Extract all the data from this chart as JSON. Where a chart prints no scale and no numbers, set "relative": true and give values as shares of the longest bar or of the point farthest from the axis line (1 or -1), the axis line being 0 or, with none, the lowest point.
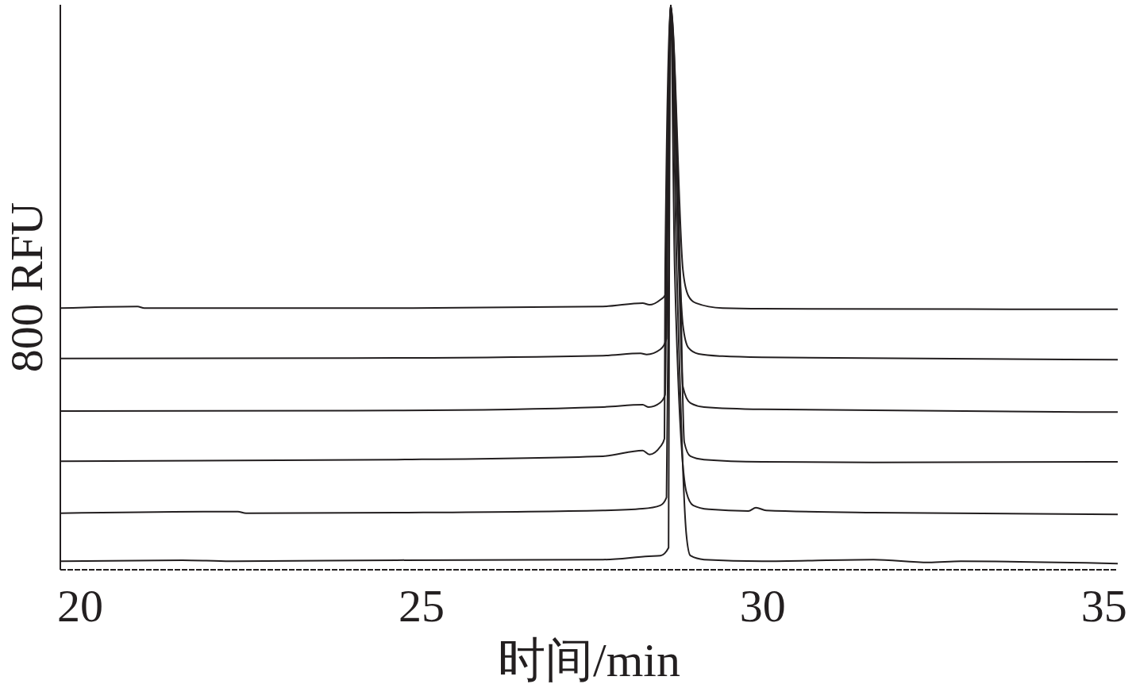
{
  "chart_data": {
    "type": "line",
    "xlabel": "时间/min",
    "ylabel": "800 RFU",
    "relative": true,
    "xlim": [
      19.71,
      35.2
    ],
    "xticks": [
      20,
      25,
      30,
      35
    ],
    "marker": "none",
    "line_style": "solid",
    "series": [
      {
        "color": "#231f20",
        "x": [
          19.71,
          21.5,
          22.2,
          24.64,
          27.66,
          28.33,
          28.5,
          28.62,
          28.63,
          28.65,
          28.74,
          28.88,
          28.94,
          29.14,
          29.99,
          31.62,
          32.43,
          32.9,
          35.2
        ],
        "values": [
          0.015,
          0.017,
          0.015,
          0.017,
          0.018,
          0.024,
          0.025,
          0.039,
          0.531,
          1.0,
          0.531,
          0.063,
          0.025,
          0.018,
          0.015,
          0.018,
          0.013,
          0.015,
          0.011
        ]
      },
      {
        "color": "#231f20",
        "x": [
          19.71,
          22.31,
          22.43,
          24.64,
          27.66,
          28.24,
          28.5,
          28.59,
          28.62,
          28.65,
          28.71,
          28.88,
          28.98,
          29.21,
          29.79,
          29.9,
          30.05,
          31.62,
          35.2
        ],
        "values": [
          0.1,
          0.103,
          0.1,
          0.101,
          0.105,
          0.108,
          0.114,
          0.128,
          0.531,
          1.0,
          0.531,
          0.138,
          0.114,
          0.107,
          0.104,
          0.11,
          0.105,
          0.101,
          0.098
        ]
      },
      {
        "color": "#231f20",
        "x": [
          19.71,
          24.64,
          27.66,
          28.24,
          28.34,
          28.5,
          28.56,
          28.57,
          28.65,
          28.79,
          28.85,
          28.94,
          29.14,
          29.99,
          31.62,
          35.2
        ],
        "values": [
          0.192,
          0.195,
          0.201,
          0.211,
          0.204,
          0.218,
          0.232,
          0.531,
          1.0,
          0.531,
          0.226,
          0.201,
          0.195,
          0.191,
          0.19,
          0.191
        ]
      },
      {
        "color": "#231f20",
        "x": [
          19.71,
          24.64,
          27.66,
          28.24,
          28.33,
          28.5,
          28.57,
          28.59,
          28.65,
          28.77,
          28.83,
          28.94,
          29.14,
          29.99,
          35.2
        ],
        "values": [
          0.281,
          0.282,
          0.288,
          0.292,
          0.288,
          0.296,
          0.31,
          0.531,
          1.0,
          0.531,
          0.324,
          0.295,
          0.288,
          0.284,
          0.279
        ]
      },
      {
        "color": "#231f20",
        "x": [
          19.71,
          24.64,
          27.66,
          28.21,
          28.3,
          28.5,
          28.59,
          28.6,
          28.65,
          28.78,
          28.83,
          28.91,
          29.06,
          29.41,
          29.99,
          35.2
        ],
        "values": [
          0.374,
          0.375,
          0.379,
          0.383,
          0.381,
          0.39,
          0.409,
          0.531,
          1.0,
          0.531,
          0.433,
          0.393,
          0.382,
          0.378,
          0.376,
          0.372
        ]
      },
      {
        "color": "#231f20",
        "x": [
          19.71,
          20.84,
          20.94,
          24.64,
          27.66,
          28.24,
          28.34,
          28.5,
          28.57,
          28.58,
          28.65,
          28.83,
          28.91,
          29.02,
          29.41,
          29.99,
          35.2
        ],
        "values": [
          0.463,
          0.466,
          0.463,
          0.463,
          0.466,
          0.472,
          0.469,
          0.478,
          0.486,
          0.531,
          1.0,
          0.531,
          0.485,
          0.472,
          0.463,
          0.462,
          0.461
        ]
      }
    ]
  }
}
